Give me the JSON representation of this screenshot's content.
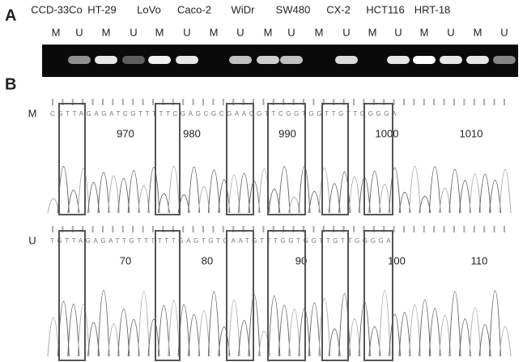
{
  "panel_a": {
    "label": "A",
    "cell_lines": [
      "CCD-33Co",
      "HT-29",
      "LoVo",
      "Caco-2",
      "WiDr",
      "SW480",
      "CX-2",
      "HCT116",
      "HRT-18"
    ],
    "lanes": [
      "M",
      "U",
      "M",
      "U",
      "M",
      "U",
      "M",
      "U",
      "M",
      "U",
      "M",
      "U",
      "M",
      "U",
      "M",
      "U",
      "M",
      "U"
    ]
  },
  "panel_b": {
    "label": "B",
    "tracks": [
      {
        "label": "M",
        "sequence": "CGTTAGAGATCGTTTTTCGAGCGCGAACGTTCGGTGGTTGTTGGGGA",
        "positions": [
          "970",
          "980",
          "990",
          "1000",
          "1010"
        ]
      },
      {
        "label": "U",
        "sequence": "TGTTAGAGATTGTTTTTTGAGTGTGAATGTTTGGTGGTTGTTGGGGA",
        "positions": [
          "70",
          "80",
          "90",
          "100",
          "110"
        ]
      }
    ]
  }
}
